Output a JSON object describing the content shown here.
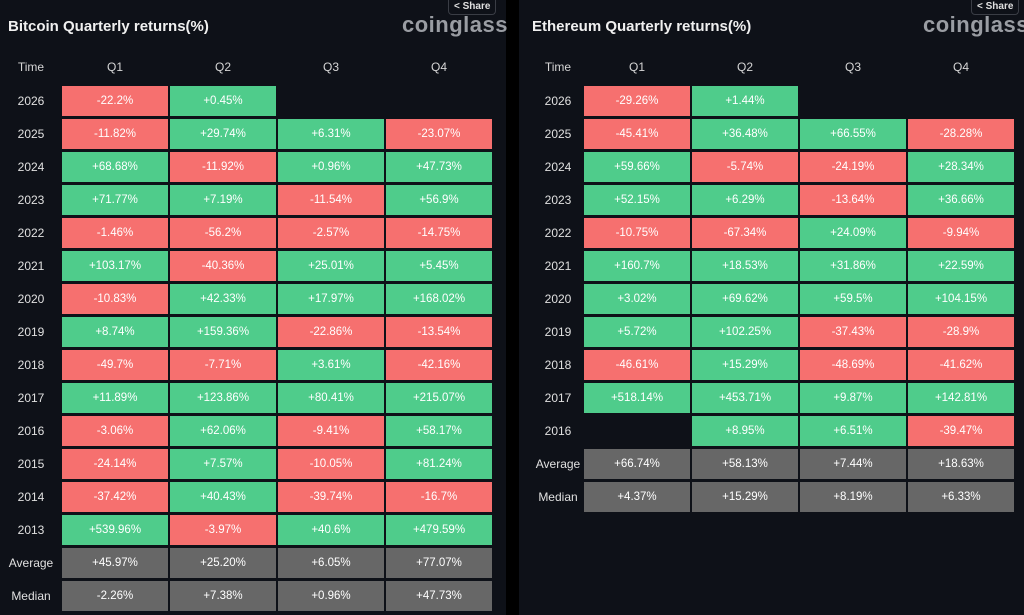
{
  "colors": {
    "positive": "#4fcc8b",
    "negative": "#f6706f",
    "summary": "#676767",
    "background": "#0e1118"
  },
  "share_label": "Share",
  "logo": "coinglass",
  "headers": [
    "Time",
    "Q1",
    "Q2",
    "Q3",
    "Q4"
  ],
  "btc": {
    "title": "Bitcoin Quarterly returns(%)",
    "rows": [
      {
        "year": "2026",
        "q": [
          "-22.2%",
          "+0.45%",
          "",
          ""
        ]
      },
      {
        "year": "2025",
        "q": [
          "-11.82%",
          "+29.74%",
          "+6.31%",
          "-23.07%"
        ]
      },
      {
        "year": "2024",
        "q": [
          "+68.68%",
          "-11.92%",
          "+0.96%",
          "+47.73%"
        ]
      },
      {
        "year": "2023",
        "q": [
          "+71.77%",
          "+7.19%",
          "-11.54%",
          "+56.9%"
        ]
      },
      {
        "year": "2022",
        "q": [
          "-1.46%",
          "-56.2%",
          "-2.57%",
          "-14.75%"
        ]
      },
      {
        "year": "2021",
        "q": [
          "+103.17%",
          "-40.36%",
          "+25.01%",
          "+5.45%"
        ]
      },
      {
        "year": "2020",
        "q": [
          "-10.83%",
          "+42.33%",
          "+17.97%",
          "+168.02%"
        ]
      },
      {
        "year": "2019",
        "q": [
          "+8.74%",
          "+159.36%",
          "-22.86%",
          "-13.54%"
        ]
      },
      {
        "year": "2018",
        "q": [
          "-49.7%",
          "-7.71%",
          "+3.61%",
          "-42.16%"
        ]
      },
      {
        "year": "2017",
        "q": [
          "+11.89%",
          "+123.86%",
          "+80.41%",
          "+215.07%"
        ]
      },
      {
        "year": "2016",
        "q": [
          "-3.06%",
          "+62.06%",
          "-9.41%",
          "+58.17%"
        ]
      },
      {
        "year": "2015",
        "q": [
          "-24.14%",
          "+7.57%",
          "-10.05%",
          "+81.24%"
        ]
      },
      {
        "year": "2014",
        "q": [
          "-37.42%",
          "+40.43%",
          "-39.74%",
          "-16.7%"
        ]
      },
      {
        "year": "2013",
        "q": [
          "+539.96%",
          "-3.97%",
          "+40.6%",
          "+479.59%"
        ]
      },
      {
        "year": "Average",
        "summary": true,
        "q": [
          "+45.97%",
          "+25.20%",
          "+6.05%",
          "+77.07%"
        ]
      },
      {
        "year": "Median",
        "summary": true,
        "q": [
          "-2.26%",
          "+7.38%",
          "+0.96%",
          "+47.73%"
        ]
      }
    ]
  },
  "eth": {
    "title": "Ethereum Quarterly returns(%)",
    "rows": [
      {
        "year": "2026",
        "q": [
          "-29.26%",
          "+1.44%",
          "",
          ""
        ]
      },
      {
        "year": "2025",
        "q": [
          "-45.41%",
          "+36.48%",
          "+66.55%",
          "-28.28%"
        ]
      },
      {
        "year": "2024",
        "q": [
          "+59.66%",
          "-5.74%",
          "-24.19%",
          "+28.34%"
        ]
      },
      {
        "year": "2023",
        "q": [
          "+52.15%",
          "+6.29%",
          "-13.64%",
          "+36.66%"
        ]
      },
      {
        "year": "2022",
        "q": [
          "-10.75%",
          "-67.34%",
          "+24.09%",
          "-9.94%"
        ]
      },
      {
        "year": "2021",
        "q": [
          "+160.7%",
          "+18.53%",
          "+31.86%",
          "+22.59%"
        ]
      },
      {
        "year": "2020",
        "q": [
          "+3.02%",
          "+69.62%",
          "+59.5%",
          "+104.15%"
        ]
      },
      {
        "year": "2019",
        "q": [
          "+5.72%",
          "+102.25%",
          "-37.43%",
          "-28.9%"
        ]
      },
      {
        "year": "2018",
        "q": [
          "-46.61%",
          "+15.29%",
          "-48.69%",
          "-41.62%"
        ]
      },
      {
        "year": "2017",
        "q": [
          "+518.14%",
          "+453.71%",
          "+9.87%",
          "+142.81%"
        ]
      },
      {
        "year": "2016",
        "q": [
          "",
          "+8.95%",
          "+6.51%",
          "-39.47%"
        ]
      },
      {
        "year": "Average",
        "summary": true,
        "q": [
          "+66.74%",
          "+58.13%",
          "+7.44%",
          "+18.63%"
        ]
      },
      {
        "year": "Median",
        "summary": true,
        "q": [
          "+4.37%",
          "+15.29%",
          "+8.19%",
          "+6.33%"
        ]
      }
    ]
  }
}
